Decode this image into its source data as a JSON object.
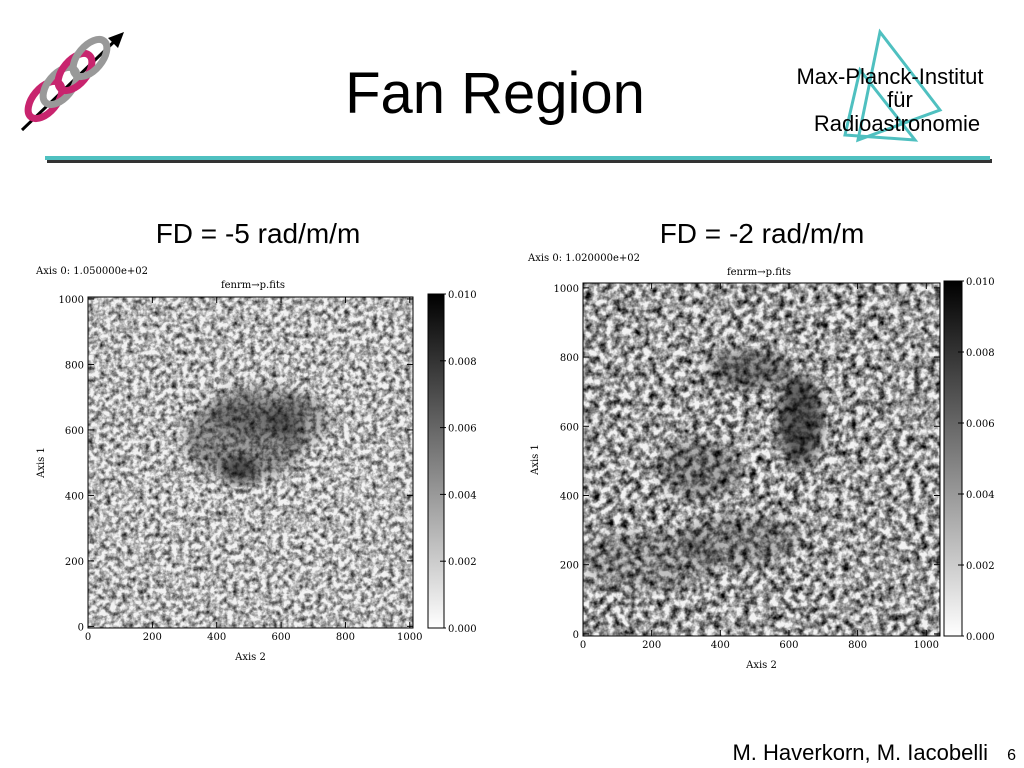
{
  "header": {
    "title": "Fan Region",
    "institute": [
      "Max-Planck-Institut",
      "für",
      "Radioastronomie"
    ]
  },
  "panels": [
    {
      "caption": "FD = -5 rad/m/m",
      "plot": {
        "axis0": "Axis 0: 1.050000e+02",
        "title": "fenrm→p.fits",
        "xlabel": "Axis 2",
        "ylabel": "Axis 1",
        "xlim": [
          0,
          1010
        ],
        "ylim": [
          -5,
          1006
        ],
        "xticks": [
          0,
          200,
          400,
          600,
          800,
          1000
        ],
        "yticks": [
          0,
          200,
          400,
          600,
          800,
          1000
        ],
        "clim": [
          0,
          0.01
        ],
        "cticks": [
          {
            "value": 0,
            "label": "0.000"
          },
          {
            "value": 0.002,
            "label": "0.002"
          },
          {
            "value": 0.004,
            "label": "0.004"
          },
          {
            "value": 0.006,
            "label": "0.006"
          },
          {
            "value": 0.008,
            "label": "0.008"
          },
          {
            "value": 0.01,
            "label": "0.010"
          }
        ]
      }
    },
    {
      "caption": "FD = -2 rad/m/m",
      "plot": {
        "axis0": "Axis 0: 1.020000e+02",
        "title": "fenrm→p.fits",
        "xlabel": "Axis 2",
        "ylabel": "Axis 1",
        "xlim": [
          0,
          1040
        ],
        "ylim": [
          -6,
          1014
        ],
        "xticks": [
          0,
          200,
          400,
          600,
          800,
          1000
        ],
        "yticks": [
          0,
          200,
          400,
          600,
          800,
          1000
        ],
        "clim": [
          0,
          0.01
        ],
        "cticks": [
          {
            "value": 0,
            "label": "0.000"
          },
          {
            "value": 0.002,
            "label": "0.002"
          },
          {
            "value": 0.004,
            "label": "0.004"
          },
          {
            "value": 0.006,
            "label": "0.006"
          },
          {
            "value": 0.008,
            "label": "0.008"
          },
          {
            "value": 0.01,
            "label": "0.010"
          }
        ]
      }
    }
  ],
  "footer": {
    "authors": "M. Haverkorn, M. Iacobelli",
    "page": "6"
  }
}
